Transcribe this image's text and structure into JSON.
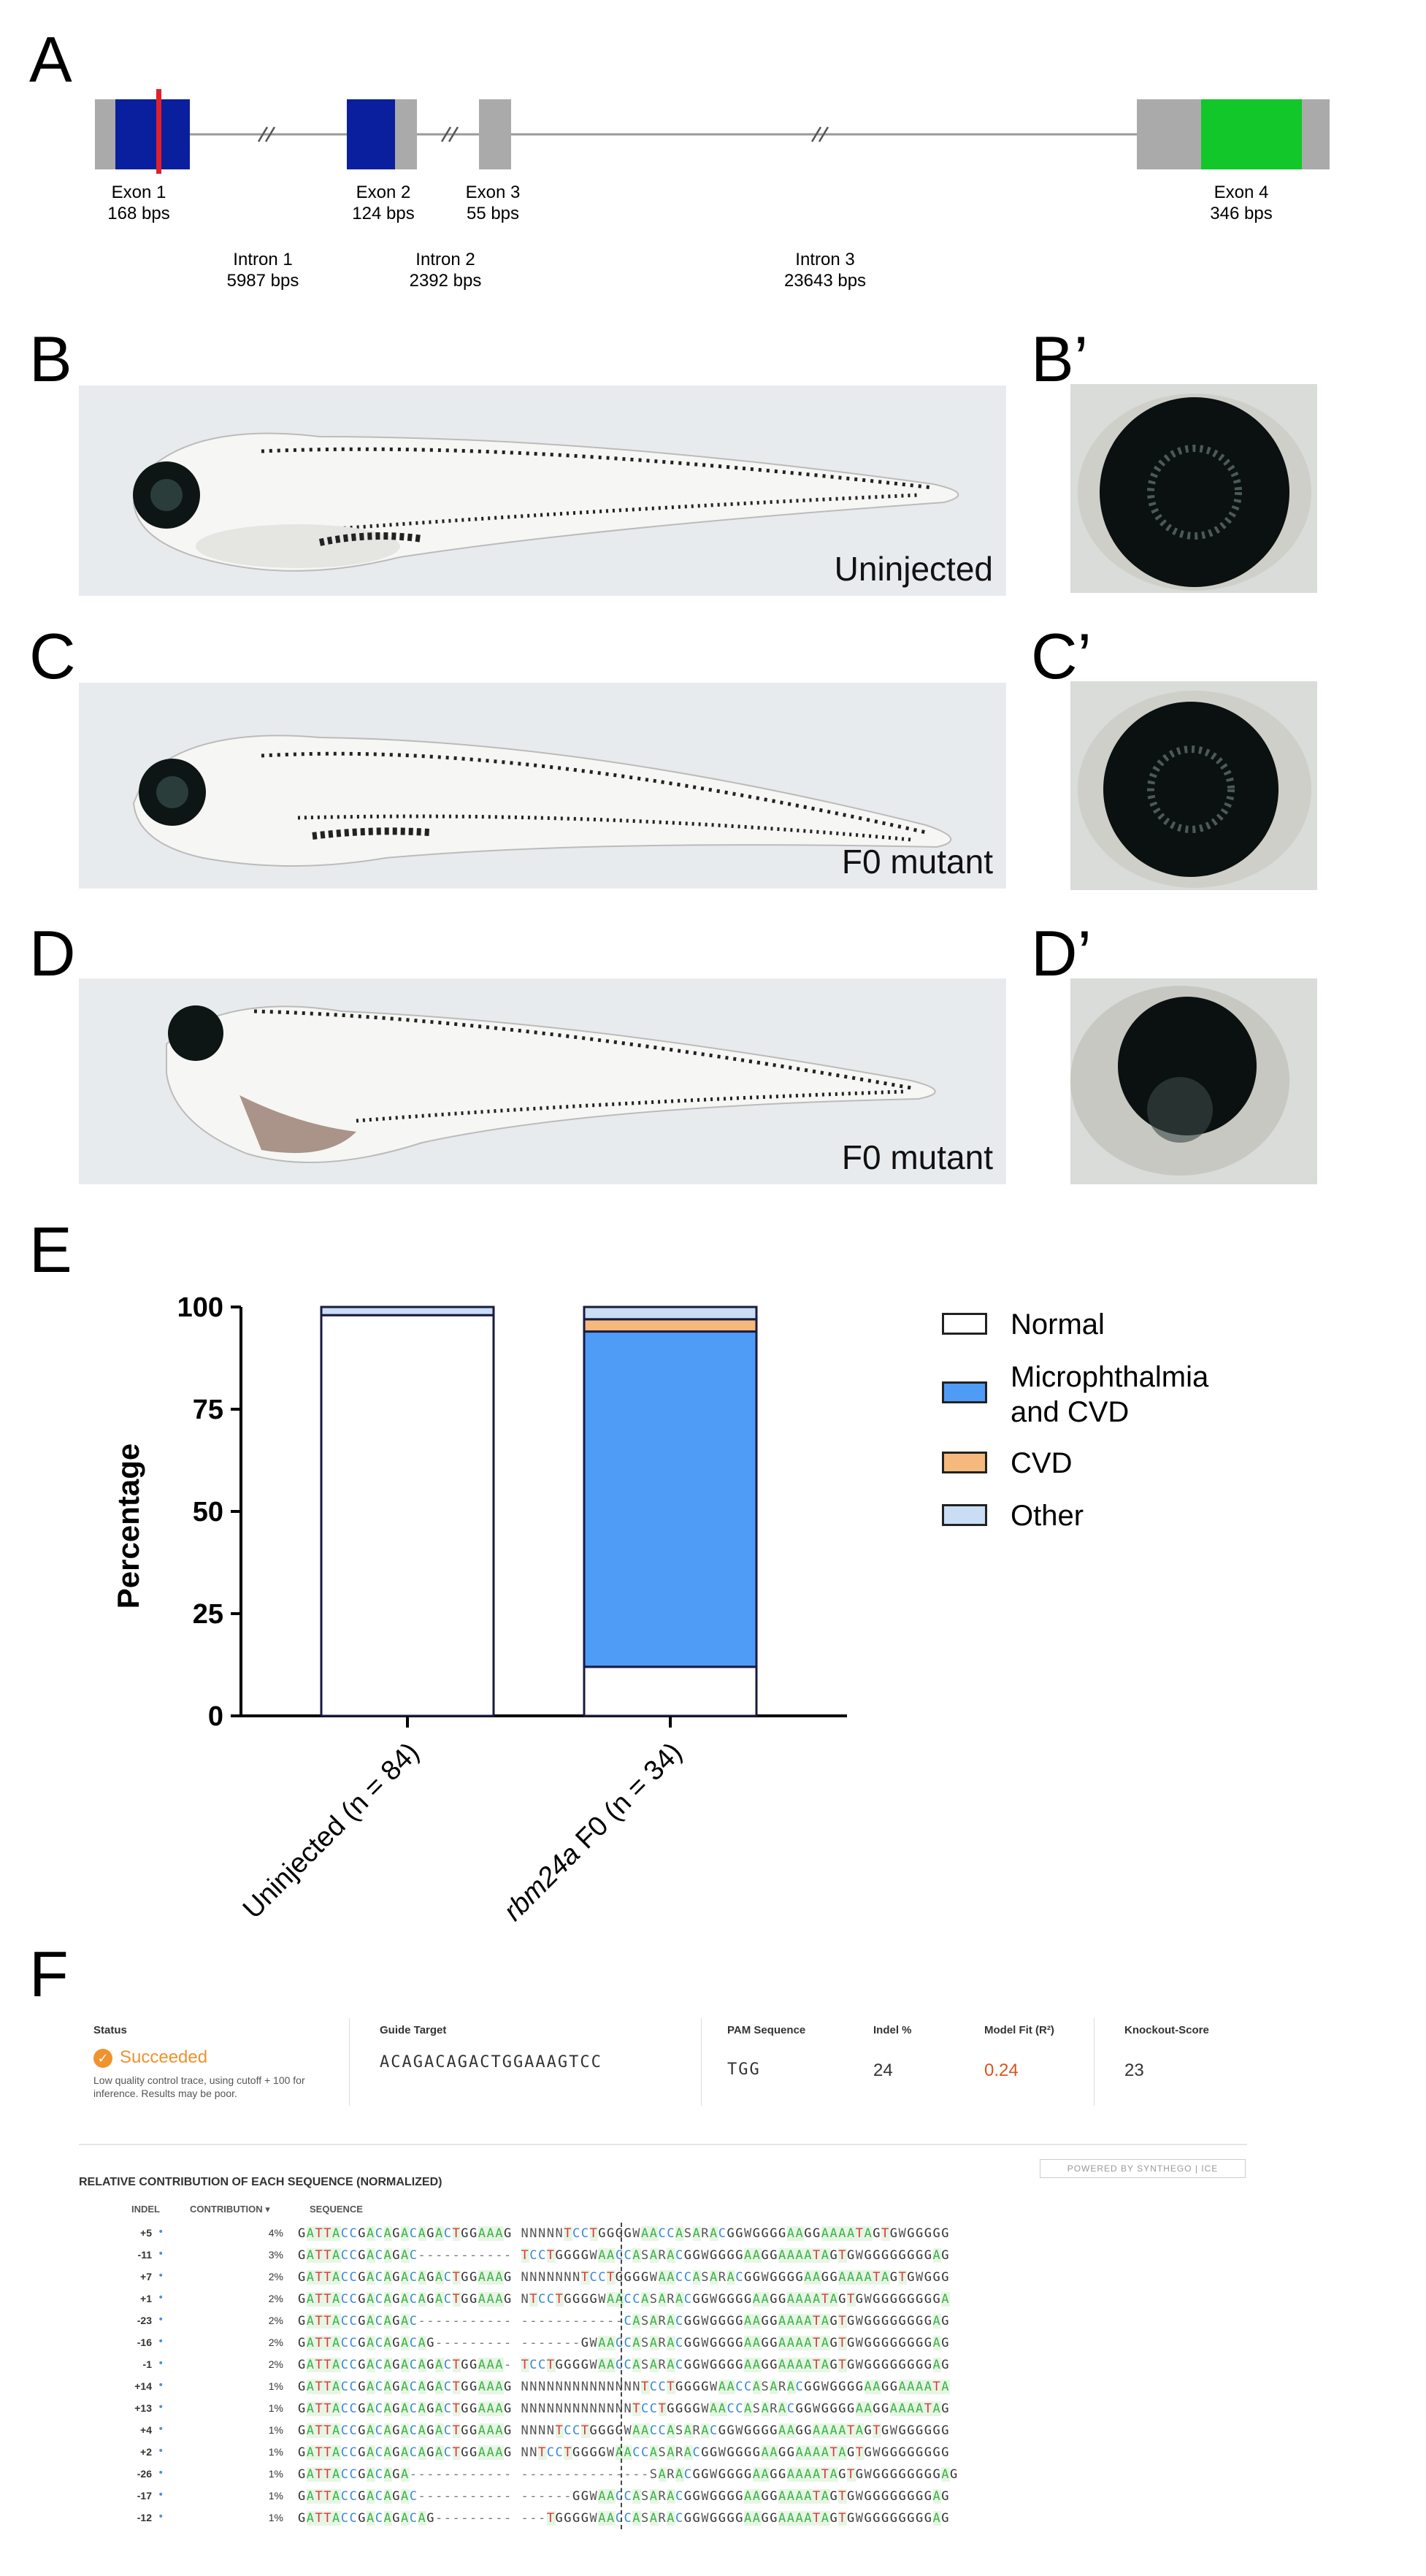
{
  "panels": {
    "A": "A",
    "B": "B",
    "Bp": "B’",
    "C": "C",
    "Cp": "C’",
    "D": "D",
    "Dp": "D’",
    "E": "E",
    "F": "F"
  },
  "gene": {
    "exons": [
      {
        "name": "Exon 1",
        "size": "168 bps"
      },
      {
        "name": "Exon 2",
        "size": "124 bps"
      },
      {
        "name": "Exon 3",
        "size": "55 bps"
      },
      {
        "name": "Exon 4",
        "size": "346 bps"
      }
    ],
    "introns": [
      {
        "name": "Intron 1",
        "size": "5987 bps"
      },
      {
        "name": "Intron 2",
        "size": "2392 bps"
      },
      {
        "name": "Intron 3",
        "size": "23643 bps"
      }
    ],
    "colors": {
      "utr": "#aaaaaa",
      "cds": "#0a1f9e",
      "exon4_cds": "#11c72a",
      "target": "#e0202a",
      "line": "#9a9a9a"
    }
  },
  "photos": {
    "b_label": "Uninjected",
    "c_label": "F0 mutant",
    "d_label": "F0 mutant"
  },
  "chart_data": {
    "type": "bar",
    "stacked": true,
    "categories": [
      "Uninjected (n = 84)",
      "rbm24a F0 (n = 34)"
    ],
    "series": [
      {
        "name": "Normal",
        "values": [
          98,
          12
        ],
        "color": "#ffffff"
      },
      {
        "name": "Microphthalmia and CVD",
        "values": [
          0,
          82
        ],
        "color": "#4f9cf7"
      },
      {
        "name": "CVD",
        "values": [
          0,
          3
        ],
        "color": "#f5b97c"
      },
      {
        "name": "Other",
        "values": [
          2,
          3
        ],
        "color": "#c9ddf4"
      }
    ],
    "ylabel": "Percentage",
    "ylim": [
      0,
      100
    ],
    "yticks": [
      "0",
      "25",
      "50",
      "75",
      "100"
    ],
    "legend_position": "right",
    "legend": [
      "Normal",
      "Microphthalmia and CVD",
      "CVD",
      "Other"
    ]
  },
  "ice": {
    "status_hdr": "Status",
    "status": "Succeeded",
    "status_note": "Low quality control trace, using cutoff + 100 for inference. Results may be poor.",
    "guide_hdr": "Guide Target",
    "guide": "ACAGACAGACTGGAAAGTCC",
    "pam_hdr": "PAM Sequence",
    "pam": "TGG",
    "indel_hdr": "Indel %",
    "indel": "24",
    "model_hdr": "Model Fit (R²)",
    "model": "0.24",
    "ko_hdr": "Knockout-Score",
    "ko": "23",
    "powered": "POWERED BY SYNTHEGO | ICE",
    "section_title": "RELATIVE CONTRIBUTION OF EACH SEQUENCE (NORMALIZED)",
    "col_indel": "INDEL",
    "col_contrib": "CONTRIBUTION ▾",
    "col_seq": "SEQUENCE",
    "rows": [
      {
        "indel": "+5",
        "contrib": "4%",
        "seq": "GATTACCGACAGACAGACTGGAAAG NNNNNTCCTGGGGWAACCASARACGGWGGGGAAGGAAAATAGTGWGGGGG"
      },
      {
        "indel": "-11",
        "contrib": "3%",
        "seq": "GATTACCGACAGAC----------- TCCTGGGGWAACCASARACGGWGGGGAAGGAAAATAGTGWGGGGGGGGAG"
      },
      {
        "indel": "+7",
        "contrib": "2%",
        "seq": "GATTACCGACAGACAGACTGGAAAG NNNNNNNTCCTGGGGWAACCASARACGGWGGGGAAGGAAAATAGTGWGGG"
      },
      {
        "indel": "+1",
        "contrib": "2%",
        "seq": "GATTACCGACAGACAGACTGGAAAG NTCCTGGGGWAACCASARACGGWGGGGAAGGAAAATAGTGWGGGGGGGGA"
      },
      {
        "indel": "-23",
        "contrib": "2%",
        "seq": "GATTACCGACAGAC----------- ------------CASARACGGWGGGGAAGGAAAATAGTGWGGGGGGGGAG"
      },
      {
        "indel": "-16",
        "contrib": "2%",
        "seq": "GATTACCGACAGACAG--------- -------GWAACCASARACGGWGGGGAAGGAAAATAGTGWGGGGGGGGAG"
      },
      {
        "indel": "-1",
        "contrib": "2%",
        "seq": "GATTACCGACAGACAGACTGGAAA- TCCTGGGGWAACCASARACGGWGGGGAAGGAAAATAGTGWGGGGGGGGAG"
      },
      {
        "indel": "+14",
        "contrib": "1%",
        "seq": "GATTACCGACAGACAGACTGGAAAG NNNNNNNNNNNNNNTCCTGGGGWAACCASARACGGWGGGGAAGGAAAATA"
      },
      {
        "indel": "+13",
        "contrib": "1%",
        "seq": "GATTACCGACAGACAGACTGGAAAG NNNNNNNNNNNNNTCCTGGGGWAACCASARACGGWGGGGAAGGAAAATAG"
      },
      {
        "indel": "+4",
        "contrib": "1%",
        "seq": "GATTACCGACAGACAGACTGGAAAG NNNNTCCTGGGGWAACCASARACGGWGGGGAAGGAAAATAGTGWGGGGGG"
      },
      {
        "indel": "+2",
        "contrib": "1%",
        "seq": "GATTACCGACAGACAGACTGGAAAG NNTCCTGGGGWAACCASARACGGWGGGGAAGGAAAATAGTGWGGGGGGGG"
      },
      {
        "indel": "-26",
        "contrib": "1%",
        "seq": "GATTACCGACAGA------------ ---------------SARACGGWGGGGAAGGAAAATAGTGWGGGGGGGGAG"
      },
      {
        "indel": "-17",
        "contrib": "1%",
        "seq": "GATTACCGACAGAC----------- ------GGWAACCASARACGGWGGGGAAGGAAAATAGTGWGGGGGGGGAG"
      },
      {
        "indel": "-12",
        "contrib": "1%",
        "seq": "GATTACCGACAGACAG--------- ---TGGGGWAACCASARACGGWGGGGAAGGAAAATAGTGWGGGGGGGGAG"
      }
    ]
  }
}
